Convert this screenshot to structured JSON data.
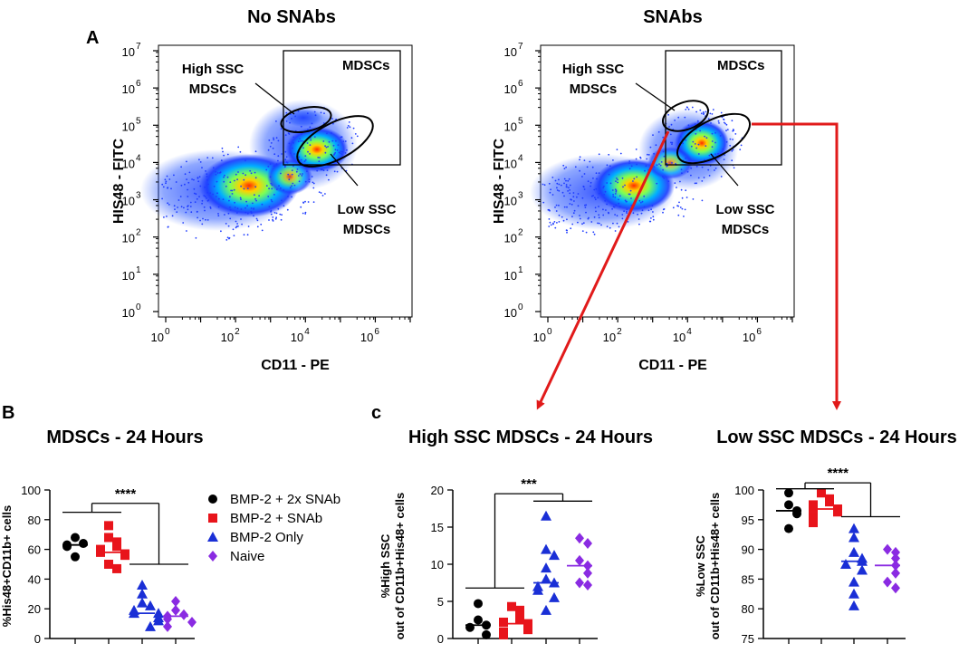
{
  "panel_labels": {
    "a": "A",
    "b": "B",
    "c": "c"
  },
  "colors": {
    "bmp2x": "#000000",
    "bmp1x": "#e8141b",
    "bmponly": "#1a2fd6",
    "naive": "#8a2be2",
    "arrow": "#e11a1a"
  },
  "flow": [
    {
      "title": "No SNAbs",
      "xlabel": "CD11 - PE",
      "ylabel": "HIS48 - FITC",
      "xticks": [
        {
          "m": "10",
          "e": "0"
        },
        {
          "m": "10",
          "e": "2"
        },
        {
          "m": "10",
          "e": "4"
        },
        {
          "m": "10",
          "e": "6"
        }
      ],
      "yticks": [
        {
          "m": "10",
          "e": "0"
        },
        {
          "m": "10",
          "e": "1"
        },
        {
          "m": "10",
          "e": "2"
        },
        {
          "m": "10",
          "e": "3"
        },
        {
          "m": "10",
          "e": "4"
        },
        {
          "m": "10",
          "e": "5"
        },
        {
          "m": "10",
          "e": "6"
        },
        {
          "m": "10",
          "e": "7"
        }
      ],
      "gate_label": "MDSCs",
      "high_label": [
        "High SSC",
        "MDSCs"
      ],
      "low_label": [
        "Low SSC",
        "MDSCs"
      ]
    },
    {
      "title": "SNAbs",
      "xlabel": "CD11 - PE",
      "ylabel": "HIS48 - FITC",
      "xticks": [
        {
          "m": "10",
          "e": "0"
        },
        {
          "m": "10",
          "e": "2"
        },
        {
          "m": "10",
          "e": "4"
        },
        {
          "m": "10",
          "e": "6"
        }
      ],
      "yticks": [
        {
          "m": "10",
          "e": "0"
        },
        {
          "m": "10",
          "e": "1"
        },
        {
          "m": "10",
          "e": "2"
        },
        {
          "m": "10",
          "e": "3"
        },
        {
          "m": "10",
          "e": "4"
        },
        {
          "m": "10",
          "e": "5"
        },
        {
          "m": "10",
          "e": "6"
        },
        {
          "m": "10",
          "e": "7"
        }
      ],
      "gate_label": "MDSCs",
      "high_label": [
        "High SSC",
        "MDSCs"
      ],
      "low_label": [
        "Low SSC",
        "MDSCs"
      ]
    }
  ],
  "legend": [
    {
      "label": "BMP-2 + 2x SNAb",
      "marker": "circle",
      "color": "#000000"
    },
    {
      "label": "BMP-2 + SNAb",
      "marker": "square",
      "color": "#e8141b"
    },
    {
      "label": "BMP-2 Only",
      "marker": "triangle",
      "color": "#1a2fd6"
    },
    {
      "label": "Naive",
      "marker": "diamond",
      "color": "#8a2be2"
    }
  ],
  "chart_data": [
    {
      "type": "scatter",
      "title": "MDSCs - 24 Hours",
      "ylabel": "%His48+CD11b+ cells",
      "ylim": [
        0,
        100
      ],
      "yticks": [
        0,
        20,
        40,
        60,
        80,
        100
      ],
      "significance": "****",
      "series": [
        {
          "name": "BMP-2 + 2x SNAb",
          "marker": "circle",
          "color": "#000000",
          "median": 63,
          "values": [
            68,
            64,
            63,
            62,
            55
          ]
        },
        {
          "name": "BMP-2 + SNAb",
          "marker": "square",
          "color": "#e8141b",
          "median": 58,
          "values": [
            76,
            68,
            65,
            62,
            60,
            58,
            57,
            56,
            50,
            47
          ]
        },
        {
          "name": "BMP-2 Only",
          "marker": "triangle",
          "color": "#1a2fd6",
          "median": 17,
          "values": [
            36,
            30,
            24,
            22,
            19,
            17,
            17,
            14,
            12,
            8
          ]
        },
        {
          "name": "Naive",
          "marker": "diamond",
          "color": "#8a2be2",
          "median": 15,
          "values": [
            25,
            19,
            16,
            15,
            13,
            11,
            8
          ]
        }
      ]
    },
    {
      "type": "scatter",
      "title": "High SSC MDSCs - 24 Hours",
      "ylabel": [
        "%High SSC",
        "out of CD11b+His48+ cells"
      ],
      "ylim": [
        0,
        20
      ],
      "yticks": [
        0,
        5,
        10,
        15,
        20
      ],
      "significance": "***",
      "series": [
        {
          "name": "BMP-2 + 2x SNAb",
          "marker": "circle",
          "color": "#000000",
          "median": 1.8,
          "values": [
            4.7,
            2.5,
            1.8,
            1.5,
            0.5
          ]
        },
        {
          "name": "BMP-2 + SNAb",
          "marker": "square",
          "color": "#e8141b",
          "median": 2.0,
          "values": [
            4.3,
            3.8,
            3.0,
            2.5,
            2.2,
            2.0,
            1.7,
            1.2,
            0.9,
            0.5
          ]
        },
        {
          "name": "BMP-2 Only",
          "marker": "triangle",
          "color": "#1a2fd6",
          "median": 7.5,
          "values": [
            16.5,
            12.0,
            11.2,
            9.5,
            8.0,
            7.5,
            7.0,
            6.5,
            5.5,
            3.8
          ]
        },
        {
          "name": "Naive",
          "marker": "diamond",
          "color": "#8a2be2",
          "median": 9.8,
          "values": [
            13.5,
            12.8,
            10.5,
            9.8,
            8.8,
            7.5,
            7.2
          ]
        }
      ]
    },
    {
      "type": "scatter",
      "title": "Low SSC MDSCs - 24 Hours",
      "ylabel": [
        "%Low SSC",
        "out of CD11b+His48+ cells"
      ],
      "ylim": [
        75,
        100
      ],
      "yticks": [
        75,
        80,
        85,
        90,
        95,
        100
      ],
      "significance": "****",
      "series": [
        {
          "name": "BMP-2 + 2x SNAb",
          "marker": "circle",
          "color": "#000000",
          "median": 96.5,
          "values": [
            99.5,
            97.5,
            96.5,
            96.0,
            93.5
          ]
        },
        {
          "name": "BMP-2 + SNAb",
          "marker": "square",
          "color": "#e8141b",
          "median": 96.8,
          "values": [
            99.5,
            98.5,
            98.0,
            97.5,
            97.0,
            96.8,
            96.3,
            95.5,
            95.0,
            94.5
          ]
        },
        {
          "name": "BMP-2 Only",
          "marker": "triangle",
          "color": "#1a2fd6",
          "median": 88.0,
          "values": [
            93.5,
            92.0,
            89.5,
            88.5,
            88.0,
            87.5,
            86.5,
            84.5,
            82.5,
            80.5
          ]
        },
        {
          "name": "Naive",
          "marker": "diamond",
          "color": "#8a2be2",
          "median": 87.3,
          "values": [
            90.0,
            89.5,
            88.5,
            87.3,
            86.0,
            84.5,
            83.5
          ]
        }
      ]
    }
  ]
}
